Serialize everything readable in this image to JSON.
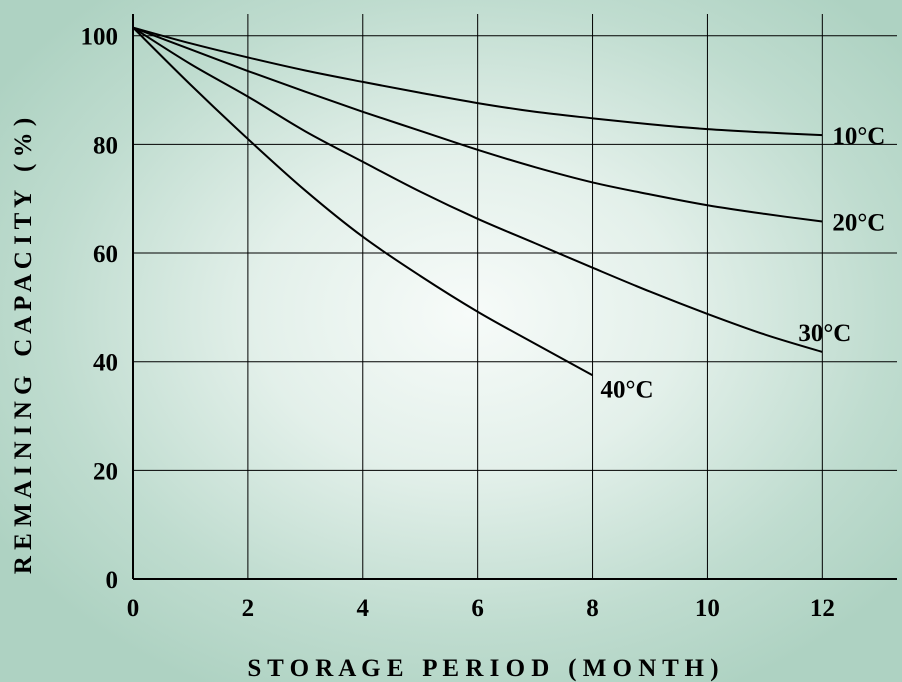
{
  "chart_data": {
    "type": "line",
    "title": "",
    "xlabel": "S T O R A G E   P E R I O D   ( M O N T H )",
    "ylabel": "R E M A I N I N G   C A P A C I T Y   ( % )",
    "xlim": [
      0,
      13.3
    ],
    "ylim": [
      0,
      104
    ],
    "x_ticks": [
      0,
      2,
      4,
      6,
      8,
      10,
      12
    ],
    "y_ticks": [
      0,
      20,
      40,
      60,
      80,
      100
    ],
    "x_tick_labels": [
      "0",
      "2",
      "4",
      "6",
      "8",
      "10",
      "12"
    ],
    "y_tick_labels": [
      "0",
      "20",
      "40",
      "60",
      "80",
      "100"
    ],
    "grid": true,
    "legend": "none",
    "series": [
      {
        "name": "10°C",
        "x": [
          0,
          1,
          2,
          3,
          4,
          5,
          6,
          7,
          8,
          9,
          10,
          11,
          12
        ],
        "y": [
          101.5,
          98.6,
          96,
          93.6,
          91.5,
          89.5,
          87.6,
          86,
          84.8,
          83.7,
          82.8,
          82.2,
          81.7
        ]
      },
      {
        "name": "20°C",
        "x": [
          0,
          1,
          2,
          3,
          4,
          5,
          6,
          7,
          8,
          9,
          10,
          11,
          12
        ],
        "y": [
          101.5,
          97.5,
          93.5,
          89.7,
          86,
          82.5,
          79,
          75.8,
          73,
          70.8,
          68.8,
          67.2,
          65.8
        ]
      },
      {
        "name": "30°C",
        "x": [
          0,
          1,
          2,
          3,
          4,
          5,
          6,
          7,
          8,
          9,
          10,
          11,
          12
        ],
        "y": [
          101.5,
          94.8,
          88.8,
          82.4,
          76.8,
          71.3,
          66.3,
          61.8,
          57.3,
          52.9,
          48.8,
          45,
          41.8
        ]
      },
      {
        "name": "40°C",
        "x": [
          0,
          1,
          2,
          3,
          4,
          5,
          6,
          7,
          8
        ],
        "y": [
          101.5,
          91,
          81,
          71.5,
          63,
          55.8,
          49.2,
          43.3,
          37.5
        ]
      }
    ]
  }
}
